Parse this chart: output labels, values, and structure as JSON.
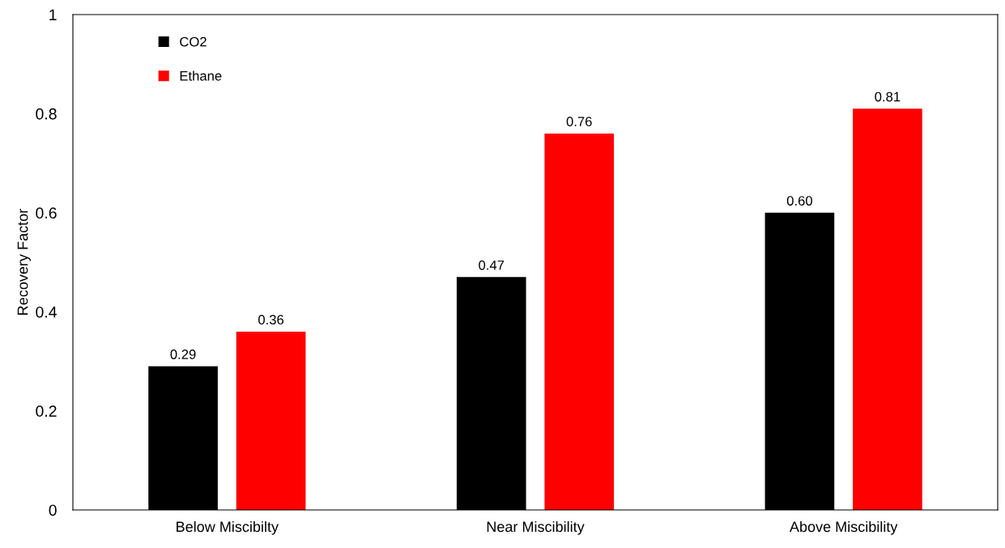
{
  "chart_data": {
    "type": "bar",
    "ylabel": "Recovery Factor",
    "categories": [
      "Below Miscibilty",
      "Near Miscibility",
      "Above Miscibility"
    ],
    "series": [
      {
        "name": "CO2",
        "color": "#000000",
        "values": [
          0.29,
          0.47,
          0.6
        ],
        "value_labels": [
          "0.29",
          "0.47",
          "0.60"
        ]
      },
      {
        "name": "Ethane",
        "color": "#ff0000",
        "values": [
          0.36,
          0.76,
          0.81
        ],
        "value_labels": [
          "0.36",
          "0.76",
          "0.81"
        ]
      }
    ],
    "ylim": [
      0,
      1
    ],
    "yticks": [
      0,
      0.2,
      0.4,
      0.6,
      0.8,
      1
    ],
    "grid": false,
    "legend": "top left"
  }
}
